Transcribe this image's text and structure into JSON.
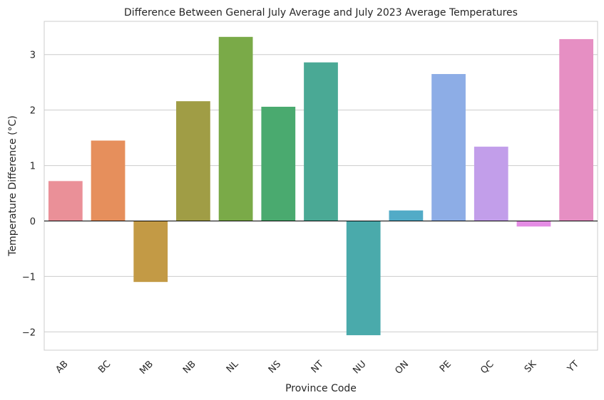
{
  "chart_data": {
    "type": "bar",
    "title": "Difference Between General July Average and July 2023 Average Temperatures",
    "xlabel": "Province Code",
    "ylabel": "Temperature Difference (°C)",
    "categories": [
      "AB",
      "BC",
      "MB",
      "NB",
      "NL",
      "NS",
      "NT",
      "NU",
      "ON",
      "PE",
      "QC",
      "SK",
      "YT"
    ],
    "values": [
      0.72,
      1.45,
      -1.1,
      2.16,
      3.32,
      2.06,
      2.86,
      -2.06,
      0.19,
      2.65,
      1.34,
      -0.1,
      3.28
    ],
    "colors": [
      "#ea9098",
      "#e68f5c",
      "#c39a45",
      "#a09d45",
      "#7aaa48",
      "#4aaa6f",
      "#4aa995",
      "#4aaaab",
      "#52abc7",
      "#8dade6",
      "#c29eea",
      "#e48ce4",
      "#e68fc3"
    ],
    "ylim": [
      -2.33,
      3.6
    ],
    "yticks": [
      -2,
      -1,
      0,
      1,
      2,
      3
    ],
    "ytick_labels": [
      "−2",
      "−1",
      "0",
      "1",
      "2",
      "3"
    ],
    "grid": true,
    "zero_line": true
  }
}
